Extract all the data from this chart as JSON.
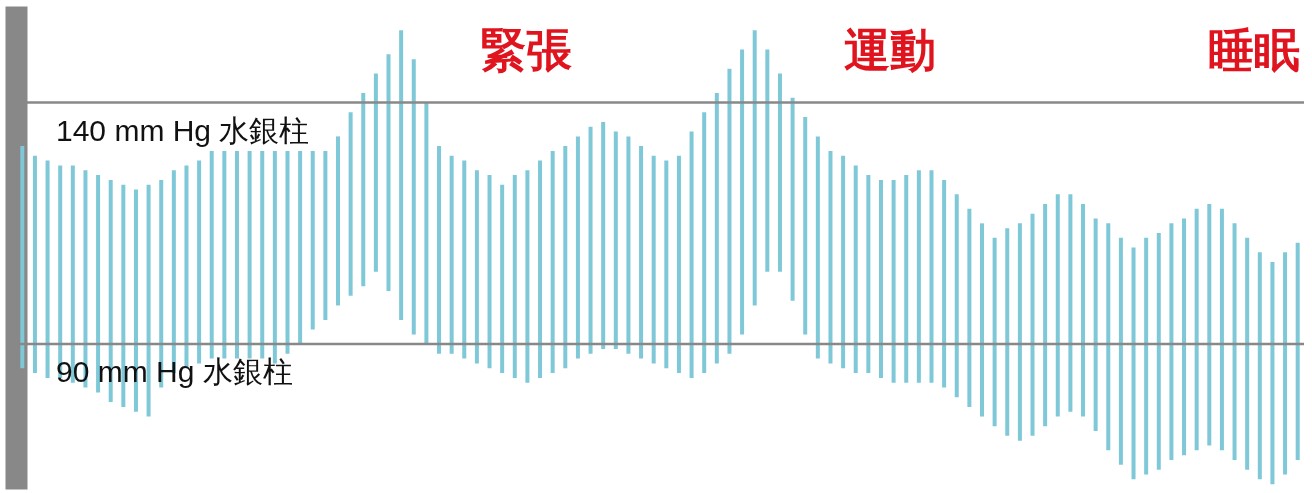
{
  "chart_data": {
    "type": "bar",
    "color": "#7ec8d8",
    "categories": [
      null,
      null,
      null,
      null,
      null,
      null,
      null,
      null,
      null,
      null,
      null,
      null,
      null,
      null,
      null,
      null,
      null,
      null,
      null,
      null,
      null,
      null,
      null,
      null,
      null,
      null,
      null,
      null,
      null,
      null,
      null,
      null,
      null,
      null,
      null,
      null,
      null,
      null,
      null,
      null,
      null,
      null,
      null,
      null,
      null,
      null,
      null,
      null,
      null,
      null,
      null,
      null,
      null,
      null,
      null,
      null,
      null,
      null,
      null,
      null,
      null,
      null,
      null,
      null,
      null,
      null,
      null,
      null,
      null,
      null,
      null,
      null,
      null,
      null,
      null,
      null,
      null,
      null,
      null,
      null,
      null,
      null,
      null,
      null,
      null,
      null,
      null,
      null,
      null,
      null,
      null,
      null,
      null,
      null,
      null,
      null,
      null,
      null,
      null,
      null,
      null,
      null
    ],
    "base": [
      85,
      84,
      83,
      83,
      82,
      81,
      80,
      78,
      77,
      76,
      75,
      81,
      84,
      85,
      86,
      87,
      87,
      87,
      87,
      87,
      86,
      88,
      90,
      93,
      95,
      98,
      100,
      102,
      105,
      101,
      95,
      92,
      90,
      88,
      88,
      87,
      86,
      85,
      84,
      83,
      82,
      83,
      84,
      85,
      87,
      88,
      89,
      89,
      88,
      87,
      86,
      85,
      84,
      83,
      84,
      86,
      88,
      92,
      98,
      105,
      105,
      99,
      92,
      87,
      86,
      85,
      84,
      84,
      83,
      82,
      82,
      82,
      82,
      81,
      79,
      77,
      75,
      73,
      71,
      70,
      71,
      73,
      75,
      76,
      75,
      72,
      68,
      65,
      62,
      63,
      64,
      66,
      67,
      68,
      69,
      68,
      66,
      64,
      62,
      61,
      63,
      66
    ],
    "values": [
      46,
      45,
      45,
      44,
      45,
      45,
      45,
      46,
      46,
      46,
      48,
      43,
      42,
      42,
      42,
      43,
      43,
      43,
      43,
      43,
      44,
      42,
      40,
      37,
      35,
      35,
      38,
      40,
      41,
      49,
      60,
      57,
      50,
      43,
      41,
      41,
      40,
      40,
      39,
      42,
      44,
      45,
      46,
      46,
      46,
      47,
      47,
      45,
      45,
      44,
      43,
      43,
      45,
      51,
      54,
      56,
      59,
      59,
      57,
      46,
      41,
      42,
      45,
      46,
      44,
      44,
      43,
      41,
      41,
      42,
      43,
      44,
      44,
      43,
      42,
      41,
      40,
      39,
      43,
      45,
      46,
      46,
      46,
      45,
      44,
      44,
      47,
      47,
      48,
      49,
      49,
      49,
      49,
      50,
      50,
      50,
      49,
      48,
      47,
      46,
      46,
      45
    ],
    "ylim": [
      60,
      160
    ],
    "tick_labels": false,
    "grid": false,
    "ref_lines": [
      {
        "axis": "y",
        "value": 140,
        "label": "140 mm Hg 水銀柱",
        "color": "#888888"
      },
      {
        "axis": "y",
        "value": 90,
        "label": "90 mm Hg 水銀柱",
        "color": "#888888"
      }
    ],
    "annotations": [
      "緊張",
      "運動",
      "睡眠"
    ]
  }
}
